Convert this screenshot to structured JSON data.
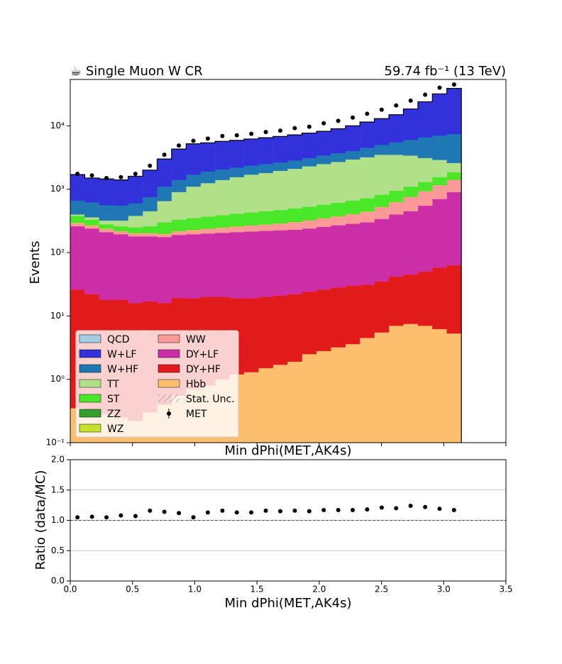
{
  "chart_data": [
    {
      "type": "histogram",
      "title": "☕ Single Muon W CR",
      "subtitle": "59.74 fb⁻¹ (13 TeV)",
      "x_label": "Min dPhi(MET,AK4s)",
      "y_label": "Events",
      "log_y": true,
      "stacked": true,
      "legend": "lower left",
      "bins": [
        0,
        0.116,
        0.233,
        0.349,
        0.465,
        0.582,
        0.698,
        0.814,
        0.931,
        1.047,
        1.164,
        1.28,
        1.396,
        1.513,
        1.629,
        1.745,
        1.862,
        1.978,
        2.094,
        2.211,
        2.327,
        2.443,
        2.56,
        2.676,
        2.793,
        2.909,
        3.025,
        3.142
      ],
      "xlim": [
        0,
        3.5
      ],
      "xticks": [
        0,
        0.5,
        1,
        1.5,
        2,
        2.5,
        3,
        3.5
      ],
      "ylim": [
        0.1,
        54000
      ],
      "yticks": [
        {
          "value": 0.1,
          "label": "10⁻¹"
        },
        {
          "value": 1,
          "label": "10⁰"
        },
        {
          "value": 10,
          "label": "10¹"
        },
        {
          "value": 100,
          "label": "10²"
        },
        {
          "value": 1000,
          "label": "10³"
        },
        {
          "value": 10000,
          "label": "10⁴"
        }
      ],
      "series": [
        {
          "name": "QCD",
          "color": "#a6cee3",
          "values": [
            2,
            2,
            2,
            2,
            2,
            2,
            2,
            2,
            2,
            2,
            2,
            2,
            2,
            2,
            2,
            2,
            2,
            2,
            2,
            2,
            2,
            2,
            2,
            2,
            2,
            2,
            2
          ]
        },
        {
          "name": "W+LF",
          "color": "#3232dc",
          "values": [
            1040,
            880,
            890,
            850,
            1000,
            1250,
            1900,
            2900,
            3500,
            3500,
            3650,
            3700,
            3850,
            4000,
            4150,
            4350,
            4600,
            4800,
            5300,
            6000,
            7000,
            8000,
            9500,
            12500,
            17400,
            25000,
            31600
          ]
        },
        {
          "name": "W+HF",
          "color": "#1f78b4",
          "values": [
            260,
            260,
            240,
            230,
            220,
            300,
            450,
            500,
            600,
            650,
            650,
            650,
            650,
            700,
            700,
            750,
            800,
            900,
            1000,
            1050,
            1300,
            1500,
            2000,
            2600,
            3500,
            4100,
            4800
          ]
        },
        {
          "name": "TT",
          "color": "#b2df8a",
          "values": [
            20,
            30,
            40,
            60,
            130,
            190,
            350,
            570,
            750,
            880,
            1010,
            1140,
            1270,
            1350,
            1480,
            1600,
            1770,
            1930,
            2090,
            2290,
            2480,
            2680,
            2550,
            2300,
            1800,
            1350,
            750
          ]
        },
        {
          "name": "ST",
          "color": "#4be82a",
          "values": [
            80,
            56,
            37,
            38,
            43,
            53,
            98,
            108,
            118,
            128,
            138,
            148,
            158,
            168,
            177,
            191,
            201,
            215,
            230,
            249,
            267,
            286,
            313,
            331,
            358,
            375,
            422
          ]
        },
        {
          "name": "ZZ",
          "color": "#33a02c",
          "values": [
            2,
            2,
            2,
            2,
            2,
            2,
            2,
            2,
            2,
            2,
            2,
            2,
            2,
            2,
            2,
            3,
            3,
            3,
            3,
            3,
            4,
            4,
            5,
            5,
            6,
            7,
            8
          ]
        },
        {
          "name": "WZ",
          "color": "#c6e22c",
          "values": [
            8,
            7,
            6,
            5,
            5,
            5,
            5,
            5,
            5,
            5,
            5,
            5,
            5,
            5,
            6,
            6,
            6,
            7,
            7,
            8,
            9,
            10,
            12,
            14,
            16,
            18,
            20
          ]
        },
        {
          "name": "WW",
          "color": "#fb9a99",
          "values": [
            30,
            25,
            25,
            20,
            20,
            20,
            20,
            25,
            30,
            35,
            40,
            45,
            50,
            55,
            60,
            70,
            80,
            90,
            100,
            115,
            140,
            180,
            220,
            300,
            370,
            450,
            500
          ]
        },
        {
          "name": "DY+LF",
          "color": "#cc2ea8",
          "values": [
            234,
            218,
            192,
            177,
            164,
            163,
            159,
            171,
            176,
            180,
            185,
            191,
            196,
            200,
            204,
            208,
            216,
            229,
            242,
            255,
            269,
            305,
            358,
            405,
            500,
            642,
            837
          ]
        },
        {
          "name": "DY+HF",
          "color": "#e31a1c",
          "values": [
            25.6,
            21.7,
            17.7,
            17.8,
            15.8,
            16.7,
            15.6,
            18.5,
            18.3,
            19.2,
            19,
            17.8,
            17.7,
            18.5,
            19.3,
            20.1,
            21.5,
            23.2,
            24.8,
            26.4,
            26.5,
            29.5,
            35,
            37.5,
            43,
            51.8,
            57.7
          ]
        },
        {
          "name": "Hbb",
          "color": "#fdbf6f",
          "values": [
            0.35,
            0.3,
            0.28,
            0.25,
            0.22,
            0.3,
            0.4,
            0.55,
            0.7,
            0.8,
            1.0,
            1.2,
            1.3,
            1.5,
            1.7,
            1.9,
            2.5,
            2.8,
            3.2,
            3.6,
            4.5,
            5.5,
            7.0,
            7.5,
            7.0,
            6.2,
            5.3
          ]
        }
      ],
      "stat_unc_label": "Stat. Unc.",
      "data_series": {
        "name": "MET",
        "color": "#000000",
        "values": [
          1750,
          1650,
          1500,
          1550,
          1750,
          2350,
          3500,
          4900,
          5800,
          6300,
          6900,
          7100,
          7500,
          8000,
          8400,
          9200,
          9700,
          11000,
          12000,
          13500,
          15500,
          18000,
          21000,
          25000,
          31000,
          40000,
          45000
        ]
      }
    },
    {
      "type": "scatter",
      "x_label": "Min dPhi(MET,AK4s)",
      "y_label": "Ratio (data/MC)",
      "grid": true,
      "reference_line": 1,
      "x": [
        0.058,
        0.175,
        0.291,
        0.407,
        0.524,
        0.64,
        0.756,
        0.873,
        0.989,
        1.105,
        1.222,
        1.338,
        1.454,
        1.571,
        1.687,
        1.804,
        1.92,
        2.036,
        2.153,
        2.269,
        2.385,
        2.502,
        2.618,
        2.734,
        2.851,
        2.967,
        3.083
      ],
      "values": [
        1.05,
        1.06,
        1.05,
        1.08,
        1.07,
        1.16,
        1.14,
        1.12,
        1.05,
        1.13,
        1.16,
        1.13,
        1.13,
        1.16,
        1.15,
        1.16,
        1.15,
        1.17,
        1.17,
        1.17,
        1.18,
        1.21,
        1.2,
        1.24,
        1.22,
        1.19,
        1.17
      ],
      "color": "#000000",
      "xlim": [
        0,
        3.5
      ],
      "xticks": [
        {
          "value": 0,
          "label": "0.0"
        },
        {
          "value": 0.5,
          "label": "0.5"
        },
        {
          "value": 1,
          "label": "1.0"
        },
        {
          "value": 1.5,
          "label": "1.5"
        },
        {
          "value": 2,
          "label": "2.0"
        },
        {
          "value": 2.5,
          "label": "2.5"
        },
        {
          "value": 3,
          "label": "3.0"
        },
        {
          "value": 3.5,
          "label": "3.5"
        }
      ],
      "ylim": [
        0,
        2
      ],
      "yticks": [
        {
          "value": 0,
          "label": "0.0"
        },
        {
          "value": 0.5,
          "label": "0.5"
        },
        {
          "value": 1,
          "label": "1.0"
        },
        {
          "value": 1.5,
          "label": "1.5"
        },
        {
          "value": 2,
          "label": "2.0"
        }
      ]
    }
  ]
}
